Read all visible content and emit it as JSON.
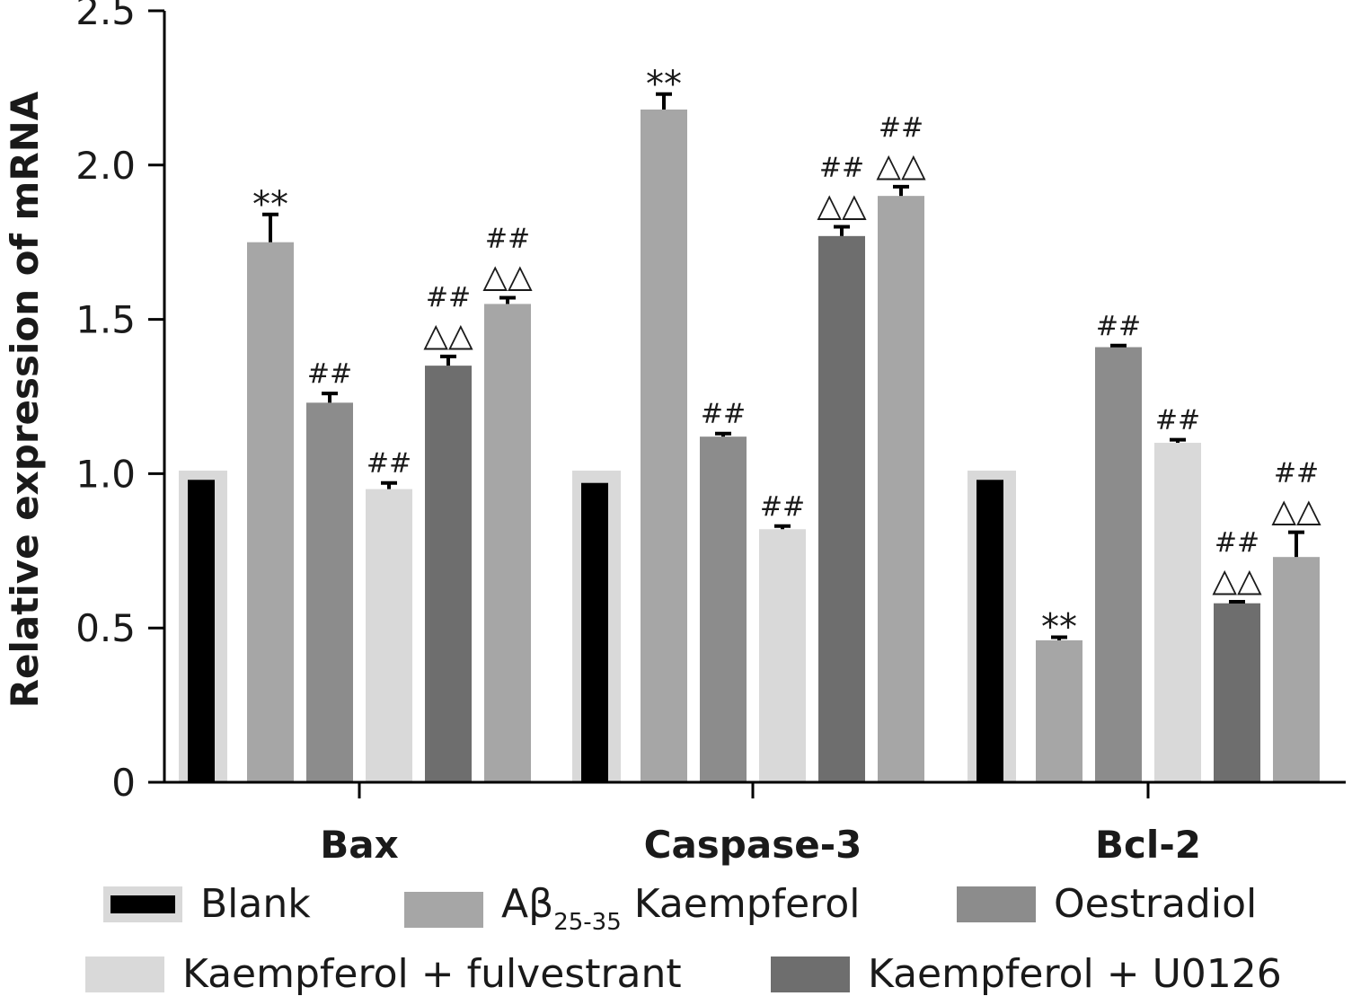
{
  "chart_data": {
    "type": "bar",
    "title": "",
    "xlabel": "",
    "ylabel": "Relative expression of mRNA",
    "ylim": [
      0,
      2.5
    ],
    "yticks": [
      "0",
      "0.5",
      "1.0",
      "1.5",
      "2.0",
      "2.5"
    ],
    "ytick_values": [
      0,
      0.5,
      1.0,
      1.5,
      2.0,
      2.5
    ],
    "categories": [
      "Bax",
      "Caspase-3",
      "Bcl-2"
    ],
    "series": [
      {
        "name": "Blank",
        "color": "#000000",
        "values": [
          0.98,
          0.97,
          0.98
        ],
        "errors": [
          0,
          0,
          0
        ]
      },
      {
        "name": "Aβ25-35 Kaempferol",
        "color": "#a6a6a6",
        "values": [
          1.75,
          2.18,
          0.46
        ],
        "errors": [
          0.09,
          0.05,
          0.01
        ]
      },
      {
        "name": "Oestradiol",
        "color": "#8c8c8c",
        "values": [
          1.23,
          1.12,
          1.41
        ],
        "errors": [
          0.03,
          0.01,
          0.005
        ]
      },
      {
        "name": "Kaempferol + fulvestrant",
        "color": "#d9d9d9",
        "values": [
          0.95,
          0.82,
          1.1
        ],
        "errors": [
          0.02,
          0.01,
          0.01
        ]
      },
      {
        "name": "Kaempferol + U0126",
        "color": "#6e6e6e",
        "values": [
          1.35,
          1.77,
          0.58
        ],
        "errors": [
          0.03,
          0.03,
          0.005
        ]
      },
      {
        "name": "",
        "color": "#a6a6a6",
        "values": [
          1.55,
          1.9,
          0.73
        ],
        "errors": [
          0.02,
          0.03,
          0.08
        ]
      }
    ],
    "blank_background_values": [
      1.01,
      1.01,
      1.01
    ],
    "annotations": [
      [
        "",
        "**",
        "##",
        "##",
        "##\n△△",
        "##\n△△"
      ],
      [
        "",
        "**",
        "##",
        "##",
        "##\n△△",
        "##\n△△"
      ],
      [
        "",
        "**",
        "##",
        "##",
        "##\n△△",
        "##\n△△"
      ]
    ],
    "legend": {
      "placement": "bottom",
      "entries": [
        {
          "label_main": "Blank",
          "label_sub": "",
          "label_tail": "",
          "color": "#000000"
        },
        {
          "label_main": "Aβ",
          "label_sub": "25-35",
          "label_tail": " Kaempferol",
          "color": "#a6a6a6"
        },
        {
          "label_main": "Oestradiol",
          "label_sub": "",
          "label_tail": "",
          "color": "#8c8c8c"
        },
        {
          "label_main": "Kaempferol + fulvestrant",
          "label_sub": "",
          "label_tail": "",
          "color": "#d9d9d9"
        },
        {
          "label_main": "Kaempferol + U0126",
          "label_sub": "",
          "label_tail": "",
          "color": "#6e6e6e"
        }
      ]
    },
    "grid": false
  }
}
